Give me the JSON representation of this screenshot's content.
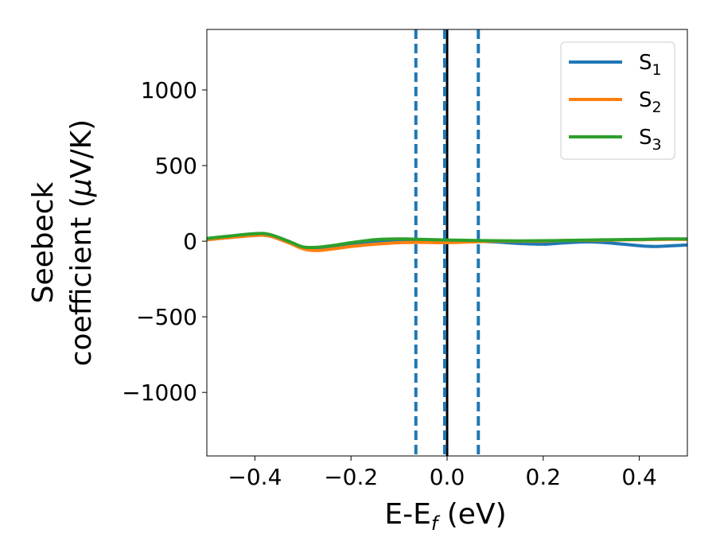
{
  "chart_data": {
    "type": "line",
    "title": "",
    "xlabel": {
      "main": "E-E",
      "sub": "f",
      "tail": " (eV)"
    },
    "ylabel": {
      "line1": "Seebeck",
      "line2_pre": "coefficient  (",
      "line2_mu": "μ",
      "line2_post": "V/K)"
    },
    "xlim": [
      -0.5,
      0.5
    ],
    "ylim": [
      -1420,
      1400
    ],
    "xticks": [
      -0.4,
      -0.2,
      0.0,
      0.2,
      0.4
    ],
    "xtick_labels": [
      "−0.4",
      "−0.2",
      "0.0",
      "0.2",
      "0.4"
    ],
    "yticks": [
      -1000,
      -500,
      0,
      500,
      1000
    ],
    "ytick_labels": [
      "−1000",
      "−500",
      "0",
      "500",
      "1000"
    ],
    "grid": false,
    "legend_position": "top-right",
    "series": [
      {
        "name": "S",
        "sub": "1",
        "color": "#1f77b4",
        "x": [
          -0.5,
          -0.45,
          -0.4,
          -0.37,
          -0.33,
          -0.3,
          -0.27,
          -0.23,
          -0.2,
          -0.15,
          -0.1,
          -0.05,
          0.0,
          0.05,
          0.1,
          0.15,
          0.2,
          0.25,
          0.3,
          0.35,
          0.4,
          0.43,
          0.47,
          0.5
        ],
        "values": [
          10,
          25,
          38,
          35,
          -10,
          -45,
          -55,
          -40,
          -25,
          -10,
          5,
          8,
          5,
          0,
          -5,
          -15,
          -20,
          -10,
          -5,
          -15,
          -30,
          -35,
          -30,
          -25
        ]
      },
      {
        "name": "S",
        "sub": "2",
        "color": "#ff7f0e",
        "x": [
          -0.5,
          -0.45,
          -0.4,
          -0.37,
          -0.33,
          -0.3,
          -0.27,
          -0.23,
          -0.2,
          -0.15,
          -0.1,
          -0.05,
          0.0,
          0.05,
          0.1,
          0.15,
          0.2,
          0.25,
          0.3,
          0.35,
          0.4,
          0.45,
          0.5
        ],
        "values": [
          10,
          25,
          38,
          35,
          -10,
          -50,
          -62,
          -48,
          -35,
          -20,
          -10,
          -8,
          -10,
          -5,
          0,
          0,
          0,
          5,
          5,
          8,
          10,
          12,
          12
        ]
      },
      {
        "name": "S",
        "sub": "3",
        "color": "#2ca02c",
        "x": [
          -0.5,
          -0.45,
          -0.4,
          -0.37,
          -0.33,
          -0.3,
          -0.27,
          -0.23,
          -0.2,
          -0.15,
          -0.1,
          -0.05,
          0.0,
          0.05,
          0.1,
          0.15,
          0.2,
          0.25,
          0.3,
          0.35,
          0.4,
          0.45,
          0.5
        ],
        "values": [
          18,
          35,
          50,
          45,
          0,
          -38,
          -40,
          -25,
          -10,
          10,
          15,
          12,
          8,
          5,
          3,
          2,
          3,
          5,
          8,
          10,
          12,
          15,
          15
        ]
      }
    ],
    "vertical_lines": [
      {
        "x": 0.0,
        "color": "#000000",
        "style": "solid"
      },
      {
        "x": -0.005,
        "color": "#1f77b4",
        "style": "dashed"
      },
      {
        "x": -0.065,
        "color": "#1f77b4",
        "style": "dashed"
      },
      {
        "x": 0.065,
        "color": "#1f77b4",
        "style": "dashed"
      }
    ]
  }
}
